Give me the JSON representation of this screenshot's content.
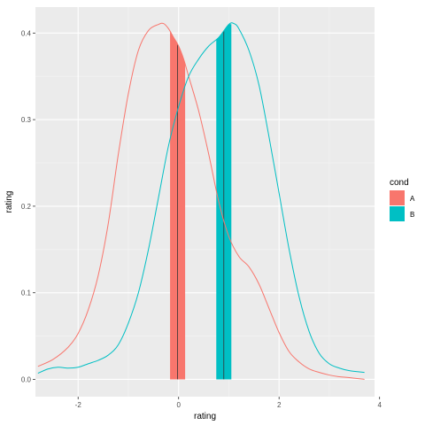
{
  "chart_data": {
    "type": "area",
    "title": "",
    "xlabel": "rating",
    "ylabel": "rating",
    "xlim": [
      -2.85,
      3.9
    ],
    "ylim": [
      -0.02,
      0.43
    ],
    "x_ticks": [
      -2,
      0,
      2,
      4
    ],
    "y_ticks": [
      0.0,
      0.1,
      0.2,
      0.3,
      0.4
    ],
    "x_tick_labels": [
      "-2",
      "0",
      "2",
      "4"
    ],
    "y_tick_labels": [
      "0.0",
      "0.1",
      "0.2",
      "0.3",
      "0.4"
    ],
    "grid": true,
    "legend": {
      "title": "cond",
      "position": "right"
    },
    "series": [
      {
        "name": "A",
        "color": "#F8766D",
        "x": [
          -2.8,
          -2.5,
          -2.2,
          -2.0,
          -1.8,
          -1.6,
          -1.4,
          -1.2,
          -1.0,
          -0.8,
          -0.6,
          -0.4,
          -0.3,
          -0.2,
          -0.1,
          0.0,
          0.1,
          0.2,
          0.4,
          0.6,
          0.8,
          1.0,
          1.2,
          1.4,
          1.6,
          1.8,
          2.0,
          2.2,
          2.4,
          2.6,
          2.8,
          3.0,
          3.2,
          3.4,
          3.7
        ],
        "y": [
          0.015,
          0.023,
          0.037,
          0.053,
          0.08,
          0.12,
          0.18,
          0.26,
          0.33,
          0.38,
          0.403,
          0.41,
          0.411,
          0.405,
          0.395,
          0.385,
          0.37,
          0.35,
          0.31,
          0.26,
          0.205,
          0.165,
          0.142,
          0.13,
          0.11,
          0.082,
          0.054,
          0.032,
          0.02,
          0.012,
          0.008,
          0.005,
          0.003,
          0.002,
          0.0
        ],
        "band": {
          "from": -0.17,
          "to": 0.13,
          "mean": -0.02
        }
      },
      {
        "name": "B",
        "color": "#00BFC4",
        "x": [
          -2.8,
          -2.6,
          -2.4,
          -2.2,
          -2.0,
          -1.8,
          -1.6,
          -1.4,
          -1.2,
          -1.0,
          -0.8,
          -0.6,
          -0.4,
          -0.2,
          0.0,
          0.2,
          0.4,
          0.6,
          0.8,
          1.0,
          1.1,
          1.2,
          1.4,
          1.6,
          1.8,
          2.0,
          2.2,
          2.4,
          2.6,
          2.8,
          3.0,
          3.2,
          3.4,
          3.7
        ],
        "y": [
          0.007,
          0.012,
          0.014,
          0.013,
          0.014,
          0.018,
          0.022,
          0.028,
          0.04,
          0.065,
          0.1,
          0.15,
          0.21,
          0.27,
          0.315,
          0.35,
          0.37,
          0.385,
          0.395,
          0.41,
          0.411,
          0.405,
          0.38,
          0.34,
          0.28,
          0.215,
          0.15,
          0.095,
          0.055,
          0.03,
          0.018,
          0.013,
          0.01,
          0.008
        ],
        "band": {
          "from": 0.75,
          "to": 1.05,
          "mean": 0.9
        }
      }
    ]
  }
}
